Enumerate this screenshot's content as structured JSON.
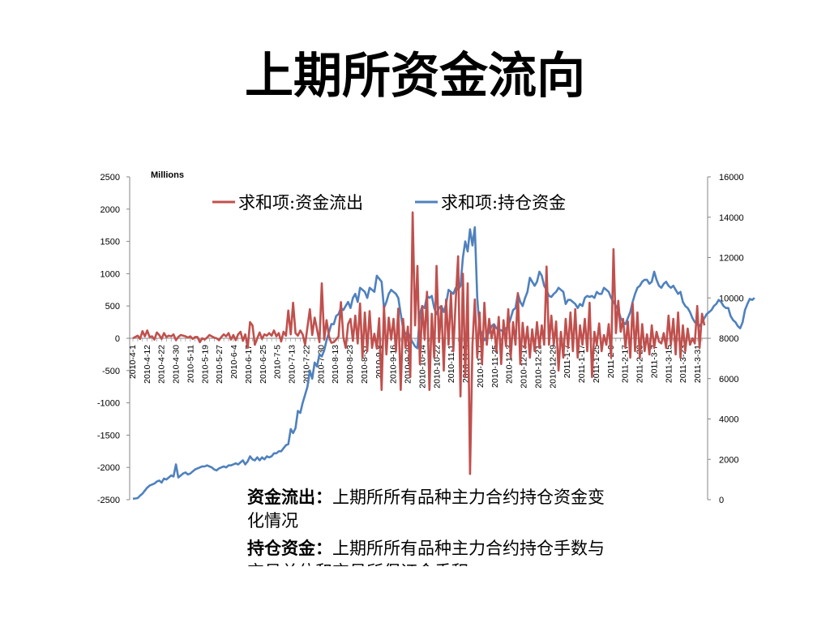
{
  "slide": {
    "title": "上期所资金流向"
  },
  "chart_data": {
    "type": "line",
    "unit_label": "Millions",
    "y_left": {
      "min": -2500,
      "max": 2500,
      "step": 500,
      "ticks": [
        "2500",
        "2000",
        "1500",
        "1000",
        "500",
        "0",
        "-500",
        "-1000",
        "-1500",
        "-2000",
        "-2500"
      ]
    },
    "y_right": {
      "min": 0,
      "max": 16000,
      "step": 2000,
      "ticks": [
        "16000",
        "14000",
        "12000",
        "10000",
        "8000",
        "6000",
        "4000",
        "2000",
        "0"
      ]
    },
    "x_tick_labels": [
      "2010-4-1",
      "2010-4-12",
      "2010-4-22",
      "2010-4-30",
      "2010-5-11",
      "2010-5-19",
      "2010-5-27",
      "2010-6-4",
      "2010-6-17",
      "2010-6-25",
      "2010-7-5",
      "2010-7-13",
      "2010-7-22",
      "2010-7-30",
      "2010-8-13",
      "2010-8-23",
      "2010-8-31",
      "2010-9-8",
      "2010-9-16",
      "2010-9-29",
      "2010-10-14",
      "2010-10-22",
      "2010-11-1",
      "2010-11-9",
      "2010-11-17",
      "2010-11-25",
      "2010-12-3",
      "2010-12-13",
      "2010-12-21",
      "2010-12-29",
      "2011-1-7",
      "2011-1-17",
      "2011-1-25",
      "2011-2-9",
      "2011-2-17",
      "2011-2-23",
      "2011-3-7",
      "2011-3-15",
      "2011-3-23",
      "2011-3-31"
    ],
    "legend_position": "top",
    "grid": false,
    "series": [
      {
        "name": "求和项:资金流出",
        "axis": "left",
        "color": "#c0504d",
        "values": [
          0,
          20,
          40,
          -10,
          110,
          30,
          120,
          20,
          30,
          -20,
          90,
          50,
          -10,
          80,
          20,
          40,
          30,
          60,
          -30,
          20,
          50,
          40,
          30,
          10,
          30,
          -10,
          20,
          20,
          -60,
          0,
          -20,
          10,
          50,
          30,
          10,
          0,
          -30,
          20,
          60,
          30,
          80,
          -20,
          50,
          -30,
          60,
          100,
          -40,
          60,
          -150,
          250,
          200,
          -100,
          0,
          90,
          -10,
          60,
          40,
          80,
          40,
          120,
          30,
          80,
          -50,
          100,
          40,
          430,
          60,
          550,
          80,
          40,
          120,
          60,
          -100,
          170,
          450,
          50,
          320,
          140,
          -60,
          850,
          -20,
          280,
          30,
          -70,
          -60,
          -20,
          30,
          560,
          20,
          -150,
          220,
          300,
          -40,
          350,
          -80,
          540,
          -300,
          400,
          -200,
          420,
          -150,
          70,
          -160,
          310,
          -800,
          500,
          -250,
          320,
          -20,
          300,
          -200,
          460,
          -800,
          300,
          -150,
          180,
          -600,
          1950,
          200,
          1120,
          -400,
          500,
          -20,
          720,
          -800,
          380,
          -300,
          1120,
          -60,
          500,
          -500,
          600,
          -100,
          700,
          -200,
          580,
          1270,
          -900,
          1000,
          -600,
          850,
          -2100,
          -100,
          600,
          -300,
          400,
          -400,
          550,
          -100,
          300,
          0,
          200,
          -200,
          330,
          -400,
          280,
          -120,
          450,
          -300,
          250,
          -100,
          700,
          -400,
          240,
          -150,
          180,
          -300,
          140,
          -200,
          250,
          -150,
          200,
          -100,
          1110,
          -100,
          350,
          -100,
          260,
          -500,
          100,
          -300,
          300,
          -150,
          400,
          -200,
          450,
          -300,
          200,
          -100,
          300,
          -200,
          550,
          -600,
          100,
          -100,
          230,
          -200,
          50,
          -100,
          220,
          -300,
          1380,
          80,
          580,
          100,
          300,
          -150,
          260,
          -300,
          540,
          -200,
          400,
          -300,
          220,
          -200,
          60,
          -250,
          200,
          -150,
          100,
          -50,
          -80,
          80,
          -150,
          350,
          -100,
          300,
          -250,
          400,
          -300,
          200,
          -200,
          150,
          -100,
          0,
          -80,
          500,
          -150,
          380,
          200
        ]
      },
      {
        "name": "求和项:持仓资金",
        "axis": "right",
        "color": "#4f81bd",
        "values": [
          50,
          60,
          80,
          200,
          300,
          450,
          600,
          700,
          750,
          800,
          900,
          950,
          850,
          1050,
          1000,
          1100,
          1200,
          1150,
          1750,
          1100,
          1200,
          1300,
          1350,
          1250,
          1300,
          1400,
          1500,
          1550,
          1600,
          1650,
          1650,
          1700,
          1650,
          1600,
          1500,
          1450,
          1550,
          1600,
          1650,
          1600,
          1700,
          1700,
          1750,
          1800,
          1750,
          1850,
          1950,
          1750,
          1900,
          2150,
          2000,
          1950,
          2100,
          1950,
          2100,
          2000,
          2150,
          2100,
          2150,
          2300,
          2300,
          2400,
          2400,
          2550,
          2700,
          2750,
          3500,
          3300,
          3550,
          4400,
          4300,
          4800,
          5200,
          5600,
          6400,
          6000,
          6800,
          6600,
          7200,
          7100,
          7400,
          7900,
          8300,
          8700,
          8700,
          9100,
          9200,
          9500,
          9400,
          9600,
          9800,
          9500,
          10000,
          10200,
          9800,
          10500,
          10400,
          10300,
          10000,
          10500,
          10400,
          10300,
          11100,
          10950,
          10800,
          9500,
          9800,
          10200,
          10400,
          10300,
          10200,
          10000,
          9200,
          8500,
          8200,
          8300,
          8000,
          7800,
          7600,
          7500,
          9200,
          9600,
          9500,
          10100,
          10000,
          10100,
          9500,
          9200,
          9500,
          9600,
          9300,
          9700,
          10400,
          10300,
          10200,
          10500,
          10400,
          10600,
          12000,
          12800,
          12300,
          13400,
          12600,
          13500,
          10000,
          8500,
          8200,
          7900,
          8100,
          8300,
          8600,
          8700,
          8500,
          8400,
          8400,
          8300,
          8500,
          8600,
          9000,
          9400,
          9500,
          10200,
          9800,
          9600,
          10000,
          10300,
          11000,
          10800,
          10600,
          10800,
          11300,
          11100,
          10600,
          10400,
          10100,
          10050,
          10200,
          10300,
          10500,
          10400,
          10300,
          9700,
          9900,
          9900,
          9800,
          9700,
          9500,
          9700,
          9600,
          10000,
          10100,
          10050,
          10100,
          10000,
          10300,
          10200,
          10200,
          10500,
          10400,
          10300,
          10000,
          9800,
          9600,
          9400,
          9000,
          8800,
          8700,
          9000,
          9300,
          9800,
          10200,
          10500,
          10600,
          10800,
          10900,
          10900,
          10700,
          10800,
          11300,
          10900,
          10600,
          10500,
          10700,
          10800,
          10600,
          10500,
          10600,
          10400,
          10200,
          10300,
          9800,
          9600,
          9500,
          9300,
          9000,
          8800,
          8700,
          8600,
          8800,
          9000,
          9200,
          9300,
          9400,
          9600,
          9700,
          9900,
          9800,
          9600,
          9500,
          9500,
          9100,
          8900,
          8800,
          8600,
          8500,
          8800,
          9400,
          9700,
          9950,
          9900,
          10000
        ]
      }
    ]
  },
  "notes": [
    {
      "term": "资金流出：",
      "desc": "上期所所有品种主力合约持仓资金变化情况"
    },
    {
      "term": "持仓资金：",
      "desc": "上期所所有品种主力合约持仓手数与交易单位和交易所保证金乘积"
    }
  ]
}
